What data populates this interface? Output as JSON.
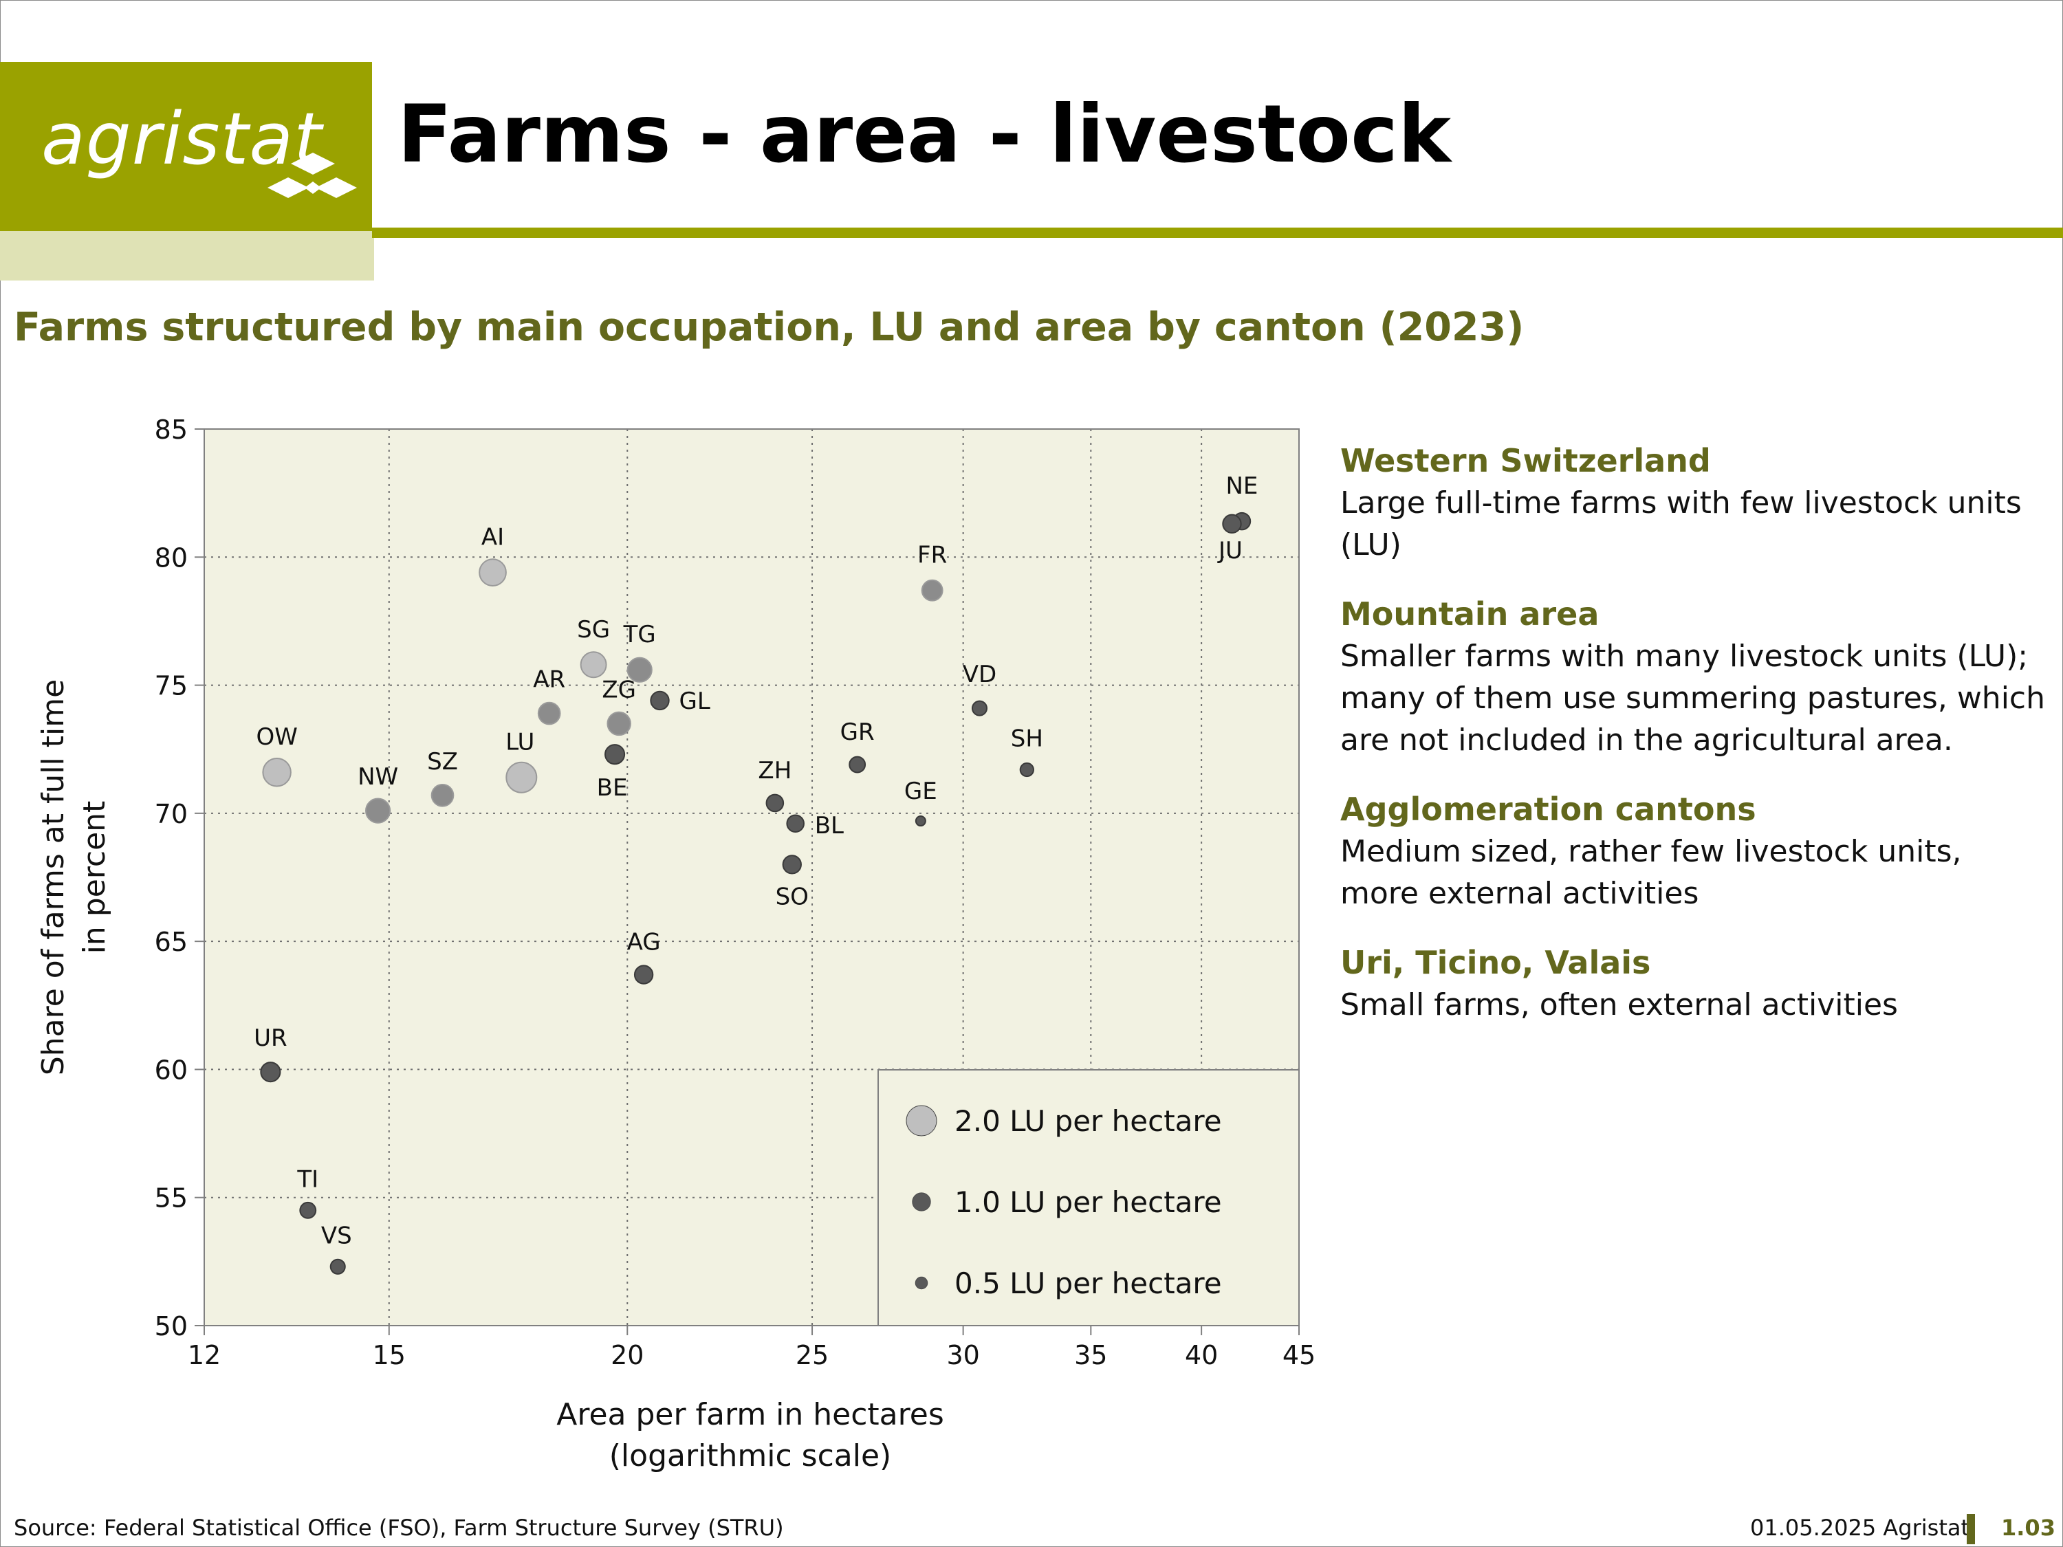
{
  "header": {
    "logo_text": "agristat",
    "title": "Farms - area - livestock",
    "subtitle": "Farms structured by main occupation, LU and area by canton (2023)"
  },
  "colors": {
    "brand": "#9aa200",
    "brand_light": "#dfe2b5",
    "heading": "#62671c",
    "plot_bg": "#f2f2e2",
    "point_dark": "#595959",
    "point_mid": "#8c8c8c",
    "point_light": "#bfbfbf"
  },
  "chart_data": {
    "type": "scatter",
    "title": "",
    "xlabel": [
      "Area per farm in hectares",
      "(logarithmic scale)"
    ],
    "ylabel": [
      "Share of farms at full time",
      "in percent"
    ],
    "x_scale": "log",
    "xlim": [
      12,
      45
    ],
    "ylim": [
      50,
      85
    ],
    "x_ticks": [
      12,
      15,
      20,
      25,
      30,
      35,
      40,
      45
    ],
    "y_ticks": [
      50,
      55,
      60,
      65,
      70,
      75,
      80,
      85
    ],
    "grid": true,
    "size_variable": "LU per hectare",
    "points": [
      {
        "label": "NE",
        "x": 42.0,
        "y": 81.4,
        "lu": 0.9
      },
      {
        "label": "JU",
        "x": 41.5,
        "y": 81.3,
        "lu": 1.0
      },
      {
        "label": "AI",
        "x": 17.0,
        "y": 79.4,
        "lu": 1.7
      },
      {
        "label": "FR",
        "x": 28.9,
        "y": 78.7,
        "lu": 1.2
      },
      {
        "label": "SG",
        "x": 19.2,
        "y": 75.8,
        "lu": 1.6
      },
      {
        "label": "TG",
        "x": 20.3,
        "y": 75.6,
        "lu": 1.5
      },
      {
        "label": "GL",
        "x": 20.8,
        "y": 74.4,
        "lu": 1.0
      },
      {
        "label": "VD",
        "x": 30.6,
        "y": 74.1,
        "lu": 0.7
      },
      {
        "label": "AR",
        "x": 18.2,
        "y": 73.9,
        "lu": 1.3
      },
      {
        "label": "ZG",
        "x": 19.8,
        "y": 73.5,
        "lu": 1.4
      },
      {
        "label": "BE",
        "x": 19.7,
        "y": 72.3,
        "lu": 1.1
      },
      {
        "label": "GR",
        "x": 26.4,
        "y": 71.9,
        "lu": 0.8
      },
      {
        "label": "SH",
        "x": 32.4,
        "y": 71.7,
        "lu": 0.6
      },
      {
        "label": "OW",
        "x": 13.1,
        "y": 71.6,
        "lu": 1.8
      },
      {
        "label": "LU",
        "x": 17.6,
        "y": 71.4,
        "lu": 2.0
      },
      {
        "label": "SZ",
        "x": 16.0,
        "y": 70.7,
        "lu": 1.3
      },
      {
        "label": "ZH",
        "x": 23.9,
        "y": 70.4,
        "lu": 0.9
      },
      {
        "label": "NW",
        "x": 14.8,
        "y": 70.1,
        "lu": 1.5
      },
      {
        "label": "GE",
        "x": 28.5,
        "y": 69.7,
        "lu": 0.3
      },
      {
        "label": "BL",
        "x": 24.5,
        "y": 69.6,
        "lu": 0.9
      },
      {
        "label": "SO",
        "x": 24.4,
        "y": 68.0,
        "lu": 1.0
      },
      {
        "label": "AG",
        "x": 20.4,
        "y": 63.7,
        "lu": 1.0
      },
      {
        "label": "UR",
        "x": 13.0,
        "y": 59.9,
        "lu": 1.1
      },
      {
        "label": "TI",
        "x": 13.6,
        "y": 54.5,
        "lu": 0.8
      },
      {
        "label": "VS",
        "x": 14.1,
        "y": 52.3,
        "lu": 0.7
      }
    ],
    "legend": {
      "position": "bottom-right",
      "entries": [
        {
          "label": "2.0 LU per hectare",
          "lu": 2.0
        },
        {
          "label": "1.0 LU per hectare",
          "lu": 1.0
        },
        {
          "label": "0.5 LU per hectare",
          "lu": 0.5
        }
      ]
    }
  },
  "notes": [
    {
      "heading": "Western Switzerland",
      "body": "Large full-time farms with few livestock units (LU)"
    },
    {
      "heading": "Mountain area",
      "body": "Smaller farms with many livestock units (LU); many of them use summering pastures, which are not included in the agricultural area."
    },
    {
      "heading": "Agglomeration cantons",
      "body": "Medium sized, rather few livestock units, more external activities"
    },
    {
      "heading": "Uri, Ticino, Valais",
      "body": "Small farms, often external activities"
    }
  ],
  "footer": {
    "source": "Source: Federal Statistical Office (FSO), Farm Structure Survey (STRU)",
    "date": "01.05.2025 Agristat",
    "page": "1.03"
  }
}
